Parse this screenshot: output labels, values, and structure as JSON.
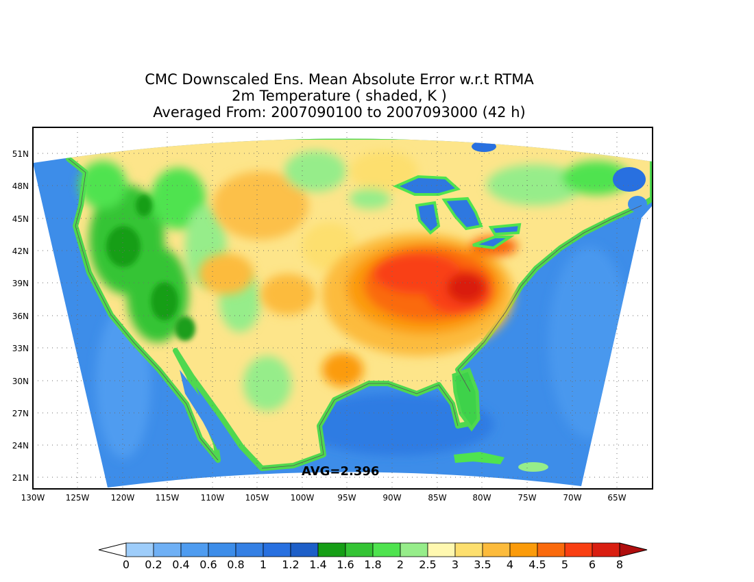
{
  "title": {
    "line1": "CMC Downscaled Ens. Mean Absolute Error w.r.t RTMA",
    "line2": "2m Temperature ( shaded, K )",
    "line3": "Averaged From: 2007090100 to 2007093000 (42 h)"
  },
  "avg_label": "AVG=2.396",
  "map": {
    "projection": "lambert-conic",
    "lat_ticks": [
      "51N",
      "48N",
      "45N",
      "42N",
      "39N",
      "36N",
      "33N",
      "30N",
      "27N",
      "24N",
      "21N"
    ],
    "lon_ticks": [
      "130W",
      "125W",
      "120W",
      "115W",
      "110W",
      "105W",
      "100W",
      "95W",
      "90W",
      "85W",
      "80W",
      "75W",
      "70W",
      "65W"
    ],
    "grid": "dotted",
    "error_hotspot": "Ohio Valley / Tennessee, values 5–6 K"
  },
  "colorbar": {
    "labels": [
      "0",
      "0.2",
      "0.4",
      "0.6",
      "0.8",
      "1",
      "1.2",
      "1.4",
      "1.6",
      "1.8",
      "2",
      "2.5",
      "3",
      "3.5",
      "4",
      "4.5",
      "5",
      "6",
      "8"
    ],
    "colors": [
      "#9ecdfa",
      "#6fb0f5",
      "#4f9cf0",
      "#3d8de9",
      "#3580e4",
      "#2870e0",
      "#1e5fc8",
      "#169e16",
      "#35c435",
      "#4fe34f",
      "#96ed8a",
      "#fff8b0",
      "#fddf6e",
      "#fcbb3c",
      "#fb9b0a",
      "#fa6a0c",
      "#f93f12",
      "#d91e10",
      "#b00e0e"
    ],
    "under_color": "#ffffff",
    "over_color": "#b00e0e"
  }
}
